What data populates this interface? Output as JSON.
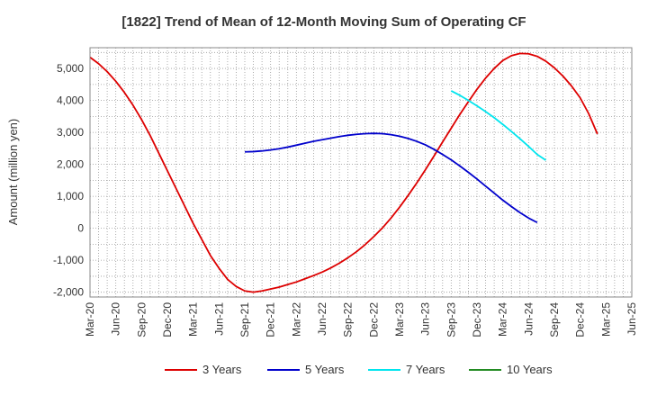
{
  "chart_data": {
    "type": "line",
    "title": "[1822]  Trend of Mean of 12-Month Moving Sum of Operating CF",
    "xlabel": "",
    "ylabel": "Amount (million yen)",
    "ylim": [
      -2150,
      5650
    ],
    "yticks": [
      5000,
      4000,
      3000,
      2000,
      1000,
      0,
      -1000,
      -2000
    ],
    "ytick_labels": [
      "5,000",
      "4,000",
      "3,000",
      "2,000",
      "1,000",
      "0",
      "-1,000",
      "-2,000"
    ],
    "x_months_from": "Mar-20",
    "x_tick_labels": [
      "Mar-20",
      "Jun-20",
      "Sep-20",
      "Dec-20",
      "Mar-21",
      "Jun-21",
      "Sep-21",
      "Dec-21",
      "Mar-22",
      "Jun-22",
      "Sep-22",
      "Dec-22",
      "Mar-23",
      "Jun-23",
      "Sep-23",
      "Dec-23",
      "Mar-24",
      "Jun-24",
      "Sep-24",
      "Dec-24",
      "Mar-25",
      "Jun-25"
    ],
    "series": [
      {
        "name": "3 Years",
        "color": "#dd0000",
        "points": [
          [
            0,
            5350
          ],
          [
            1,
            5150
          ],
          [
            2,
            4900
          ],
          [
            3,
            4600
          ],
          [
            4,
            4250
          ],
          [
            5,
            3850
          ],
          [
            6,
            3400
          ],
          [
            7,
            2900
          ],
          [
            8,
            2350
          ],
          [
            9,
            1800
          ],
          [
            10,
            1250
          ],
          [
            11,
            700
          ],
          [
            12,
            150
          ],
          [
            13,
            -350
          ],
          [
            14,
            -850
          ],
          [
            15,
            -1250
          ],
          [
            16,
            -1600
          ],
          [
            17,
            -1820
          ],
          [
            18,
            -1960
          ],
          [
            19,
            -2000
          ],
          [
            20,
            -1960
          ],
          [
            21,
            -1900
          ],
          [
            22,
            -1840
          ],
          [
            23,
            -1760
          ],
          [
            24,
            -1680
          ],
          [
            25,
            -1580
          ],
          [
            26,
            -1480
          ],
          [
            27,
            -1370
          ],
          [
            28,
            -1240
          ],
          [
            29,
            -1090
          ],
          [
            30,
            -920
          ],
          [
            31,
            -730
          ],
          [
            32,
            -510
          ],
          [
            33,
            -260
          ],
          [
            34,
            10
          ],
          [
            35,
            320
          ],
          [
            36,
            660
          ],
          [
            37,
            1030
          ],
          [
            38,
            1420
          ],
          [
            39,
            1830
          ],
          [
            40,
            2260
          ],
          [
            41,
            2700
          ],
          [
            42,
            3130
          ],
          [
            43,
            3560
          ],
          [
            44,
            3960
          ],
          [
            45,
            4350
          ],
          [
            46,
            4700
          ],
          [
            47,
            5000
          ],
          [
            48,
            5250
          ],
          [
            49,
            5400
          ],
          [
            50,
            5470
          ],
          [
            51,
            5460
          ],
          [
            52,
            5380
          ],
          [
            53,
            5230
          ],
          [
            54,
            5020
          ],
          [
            55,
            4760
          ],
          [
            56,
            4450
          ],
          [
            57,
            4080
          ],
          [
            58,
            3580
          ],
          [
            59,
            2950
          ]
        ]
      },
      {
        "name": "5 Years",
        "color": "#0000cc",
        "points": [
          [
            18,
            2390
          ],
          [
            19,
            2400
          ],
          [
            20,
            2420
          ],
          [
            21,
            2450
          ],
          [
            22,
            2490
          ],
          [
            23,
            2540
          ],
          [
            24,
            2600
          ],
          [
            25,
            2660
          ],
          [
            26,
            2720
          ],
          [
            27,
            2770
          ],
          [
            28,
            2820
          ],
          [
            29,
            2870
          ],
          [
            30,
            2910
          ],
          [
            31,
            2940
          ],
          [
            32,
            2960
          ],
          [
            33,
            2970
          ],
          [
            34,
            2960
          ],
          [
            35,
            2930
          ],
          [
            36,
            2880
          ],
          [
            37,
            2810
          ],
          [
            38,
            2720
          ],
          [
            39,
            2610
          ],
          [
            40,
            2470
          ],
          [
            41,
            2310
          ],
          [
            42,
            2140
          ],
          [
            43,
            1950
          ],
          [
            44,
            1750
          ],
          [
            45,
            1540
          ],
          [
            46,
            1320
          ],
          [
            47,
            1100
          ],
          [
            48,
            880
          ],
          [
            49,
            680
          ],
          [
            50,
            490
          ],
          [
            51,
            320
          ],
          [
            52,
            180
          ]
        ]
      },
      {
        "name": "7 Years",
        "color": "#00e5ee",
        "points": [
          [
            42,
            4300
          ],
          [
            43,
            4160
          ],
          [
            44,
            4000
          ],
          [
            45,
            3830
          ],
          [
            46,
            3650
          ],
          [
            47,
            3460
          ],
          [
            48,
            3250
          ],
          [
            49,
            3030
          ],
          [
            50,
            2800
          ],
          [
            51,
            2560
          ],
          [
            52,
            2310
          ],
          [
            53,
            2130
          ]
        ]
      },
      {
        "name": "10 Years",
        "color": "#228b22",
        "points": []
      }
    ]
  }
}
